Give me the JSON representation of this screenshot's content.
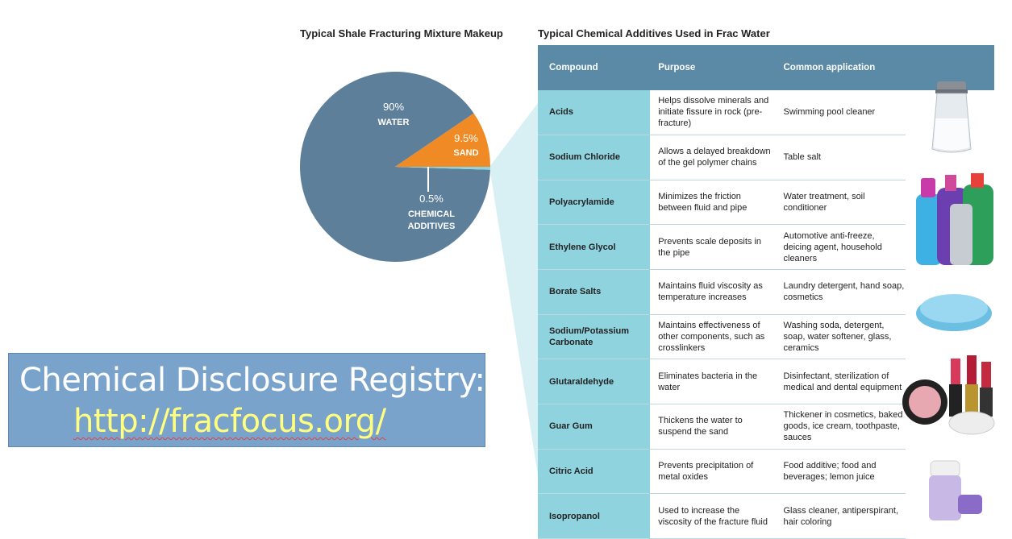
{
  "pie_title": "Typical Shale Fracturing Mixture Makeup",
  "table_title": "Typical Chemical Additives Used in Frac Water",
  "chart_data": {
    "type": "pie",
    "title": "Typical Shale Fracturing Mixture Makeup",
    "slices": [
      {
        "name": "WATER",
        "pct_label": "90%",
        "value": 90,
        "color": "#5d7f9a"
      },
      {
        "name": "SAND",
        "pct_label": "9.5%",
        "value": 9.5,
        "color": "#f08a24"
      },
      {
        "name": "CHEMICAL ADDITIVES",
        "name_lines": [
          "CHEMICAL",
          "ADDITIVES"
        ],
        "pct_label": "0.5%",
        "value": 0.5,
        "color": "#8fd3df"
      }
    ]
  },
  "table": {
    "headers": [
      "Compound",
      "Purpose",
      "Common application"
    ],
    "rows": [
      {
        "compound": "Acids",
        "purpose": "Helps dissolve minerals and initiate fissure in rock (pre-fracture)",
        "application": "Swimming pool cleaner"
      },
      {
        "compound": "Sodium Chloride",
        "purpose": "Allows a delayed breakdown of the gel polymer chains",
        "application": "Table salt"
      },
      {
        "compound": "Polyacrylamide",
        "purpose": "Minimizes the friction between fluid and pipe",
        "application": "Water treatment, soil conditioner"
      },
      {
        "compound": "Ethylene Glycol",
        "purpose": "Prevents scale deposits in the pipe",
        "application": "Automotive anti-freeze, deicing agent, household cleaners"
      },
      {
        "compound": "Borate Salts",
        "purpose": "Maintains fluid viscosity as temperature increases",
        "application": "Laundry detergent, hand soap, cosmetics"
      },
      {
        "compound": "Sodium/Potassium Carbonate",
        "purpose": "Maintains effectiveness of other components, such as crosslinkers",
        "application": "Washing soda, detergent, soap, water softener, glass, ceramics"
      },
      {
        "compound": "Glutaraldehyde",
        "purpose": "Eliminates bacteria in the water",
        "application": "Disinfectant, sterilization of medical and dental equipment"
      },
      {
        "compound": "Guar Gum",
        "purpose": "Thickens the water to suspend the sand",
        "application": "Thickener in cosmetics, baked goods, ice cream, toothpaste, sauces"
      },
      {
        "compound": "Citric Acid",
        "purpose": "Prevents precipitation of metal oxides",
        "application": "Food additive; food and beverages; lemon juice"
      },
      {
        "compound": "Isopropanol",
        "purpose": "Used to increase the viscosity of the fracture fluid",
        "application": "Glass cleaner, antiperspirant, hair coloring"
      }
    ]
  },
  "registry": {
    "title": "Chemical Disclosure Registry:",
    "link": "http://fracfocus.org/"
  },
  "photos": [
    "salt-shaker-icon",
    "cleaning-bottles-icon",
    "soap-bar-icon",
    "cosmetics-icon",
    "deodorant-icon"
  ]
}
